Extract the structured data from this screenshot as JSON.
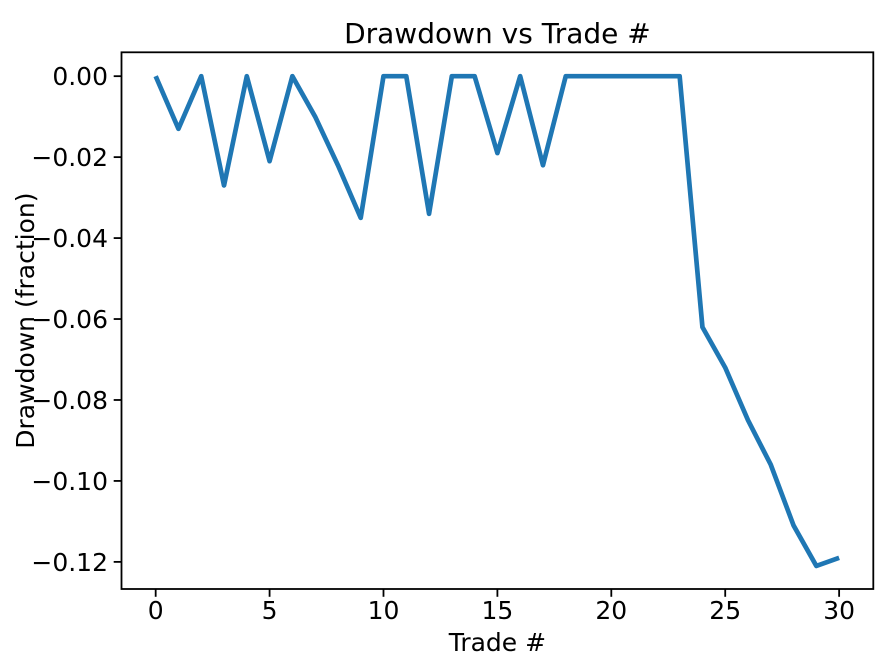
{
  "figure": {
    "background": "#ffffff"
  },
  "chart_data": {
    "type": "line",
    "title": "Drawdown vs Trade #",
    "xlabel": "Trade #",
    "ylabel": "Drawdown (fraction)",
    "x": [
      0,
      1,
      2,
      3,
      4,
      5,
      6,
      7,
      8,
      9,
      10,
      11,
      12,
      13,
      14,
      15,
      16,
      17,
      18,
      19,
      20,
      21,
      22,
      23,
      24,
      25,
      26,
      27,
      28,
      29,
      30
    ],
    "y": [
      0.0,
      -0.013,
      0.0,
      -0.027,
      0.0,
      -0.021,
      0.0,
      -0.01,
      -0.022,
      -0.035,
      0.0,
      0.0,
      -0.034,
      0.0,
      0.0,
      -0.019,
      0.0,
      -0.022,
      0.0,
      0.0,
      0.0,
      0.0,
      0.0,
      0.0,
      -0.062,
      -0.072,
      -0.085,
      -0.096,
      -0.111,
      -0.121,
      -0.119
    ],
    "xlim": [
      -1.5,
      31.5
    ],
    "ylim": [
      -0.1267,
      0.0059
    ],
    "xticks": [
      0,
      5,
      10,
      15,
      20,
      25,
      30
    ],
    "xtick_labels": [
      "0",
      "5",
      "10",
      "15",
      "20",
      "25",
      "30"
    ],
    "yticks": [
      0.0,
      -0.02,
      -0.04,
      -0.06,
      -0.08,
      -0.1,
      -0.12
    ],
    "ytick_labels": [
      "0.00",
      "−0.02",
      "−0.04",
      "−0.06",
      "−0.08",
      "−0.10",
      "−0.12"
    ],
    "line_color": "#1f77b4",
    "axis_color": "#000000",
    "grid": false,
    "legend": "none"
  }
}
